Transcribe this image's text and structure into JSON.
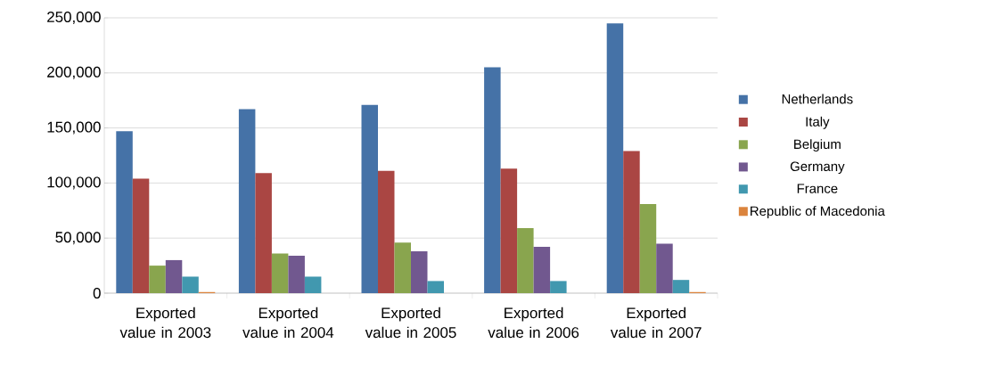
{
  "chart_data": {
    "type": "bar",
    "categories": [
      "Exported value in 2003",
      "Exported value in 2004",
      "Exported value in 2005",
      "Exported value in 2006",
      "Exported value in 2007"
    ],
    "series": [
      {
        "name": "Netherlands",
        "color": "#4572a7",
        "values": [
          147000,
          167000,
          171000,
          205000,
          245000
        ]
      },
      {
        "name": "Italy",
        "color": "#aa4643",
        "values": [
          104000,
          109000,
          111000,
          113000,
          129000
        ]
      },
      {
        "name": "Belgium",
        "color": "#89a54e",
        "values": [
          25000,
          36000,
          46000,
          59000,
          81000
        ]
      },
      {
        "name": "Germany",
        "color": "#71588f",
        "values": [
          30000,
          34000,
          38000,
          42000,
          45000
        ]
      },
      {
        "name": "France",
        "color": "#4198af",
        "values": [
          15000,
          15000,
          11000,
          11000,
          12000
        ]
      },
      {
        "name": "Republic of Macedonia",
        "color": "#db843d",
        "values": [
          1000,
          null,
          null,
          null,
          1000
        ]
      }
    ],
    "ylim": [
      0,
      250000
    ],
    "yticks": [
      {
        "value": 0,
        "label": "0"
      },
      {
        "value": 50000,
        "label": "50,000"
      },
      {
        "value": 100000,
        "label": "100,000"
      },
      {
        "value": 150000,
        "label": "150,000"
      },
      {
        "value": 200000,
        "label": "200,000"
      },
      {
        "value": 250000,
        "label": "250,000"
      }
    ],
    "grid": "y",
    "legend": "right"
  }
}
